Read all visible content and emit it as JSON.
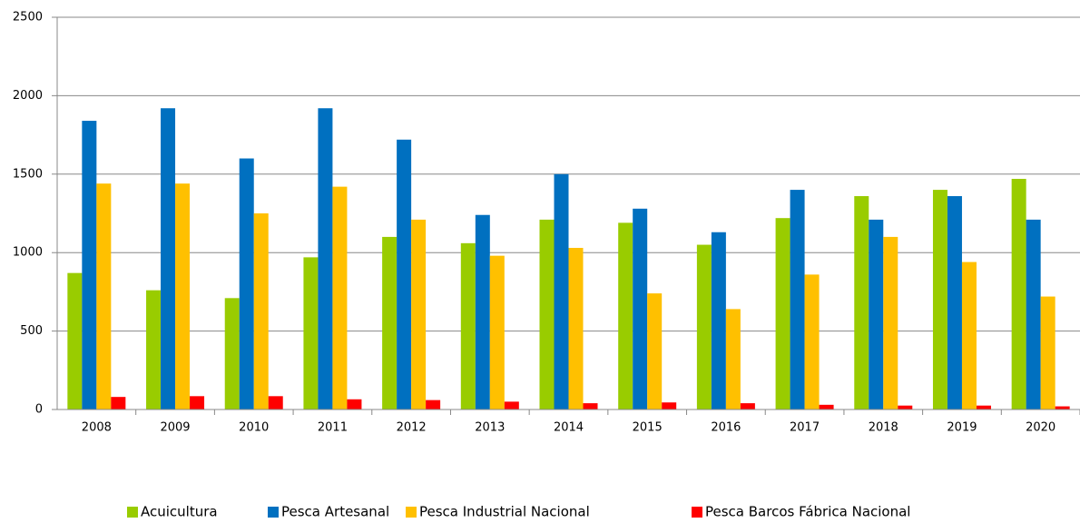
{
  "chart_data": {
    "type": "bar",
    "categories": [
      "2008",
      "2009",
      "2010",
      "2011",
      "2012",
      "2013",
      "2014",
      "2015",
      "2016",
      "2017",
      "2018",
      "2019",
      "2020"
    ],
    "series": [
      {
        "name": "Acuicultura",
        "color": "#99cc00",
        "values": [
          870,
          760,
          710,
          970,
          1100,
          1060,
          1210,
          1190,
          1050,
          1220,
          1360,
          1400,
          1470
        ]
      },
      {
        "name": "Pesca Artesanal",
        "color": "#0070c0",
        "values": [
          1840,
          1920,
          1600,
          1920,
          1720,
          1240,
          1500,
          1280,
          1130,
          1400,
          1210,
          1360,
          1210
        ]
      },
      {
        "name": "Pesca Industrial Nacional",
        "color": "#ffc000",
        "values": [
          1440,
          1440,
          1250,
          1420,
          1210,
          980,
          1030,
          740,
          640,
          860,
          1100,
          940,
          720
        ]
      },
      {
        "name": "Pesca Barcos Fábrica Nacional",
        "color": "#ff0000",
        "values": [
          80,
          85,
          85,
          65,
          60,
          50,
          40,
          45,
          40,
          30,
          25,
          25,
          20
        ]
      }
    ],
    "ylim": [
      0,
      2500
    ],
    "yticks": [
      0,
      500,
      1000,
      1500,
      2000,
      2500
    ],
    "grid": true,
    "legend": "bottom"
  }
}
